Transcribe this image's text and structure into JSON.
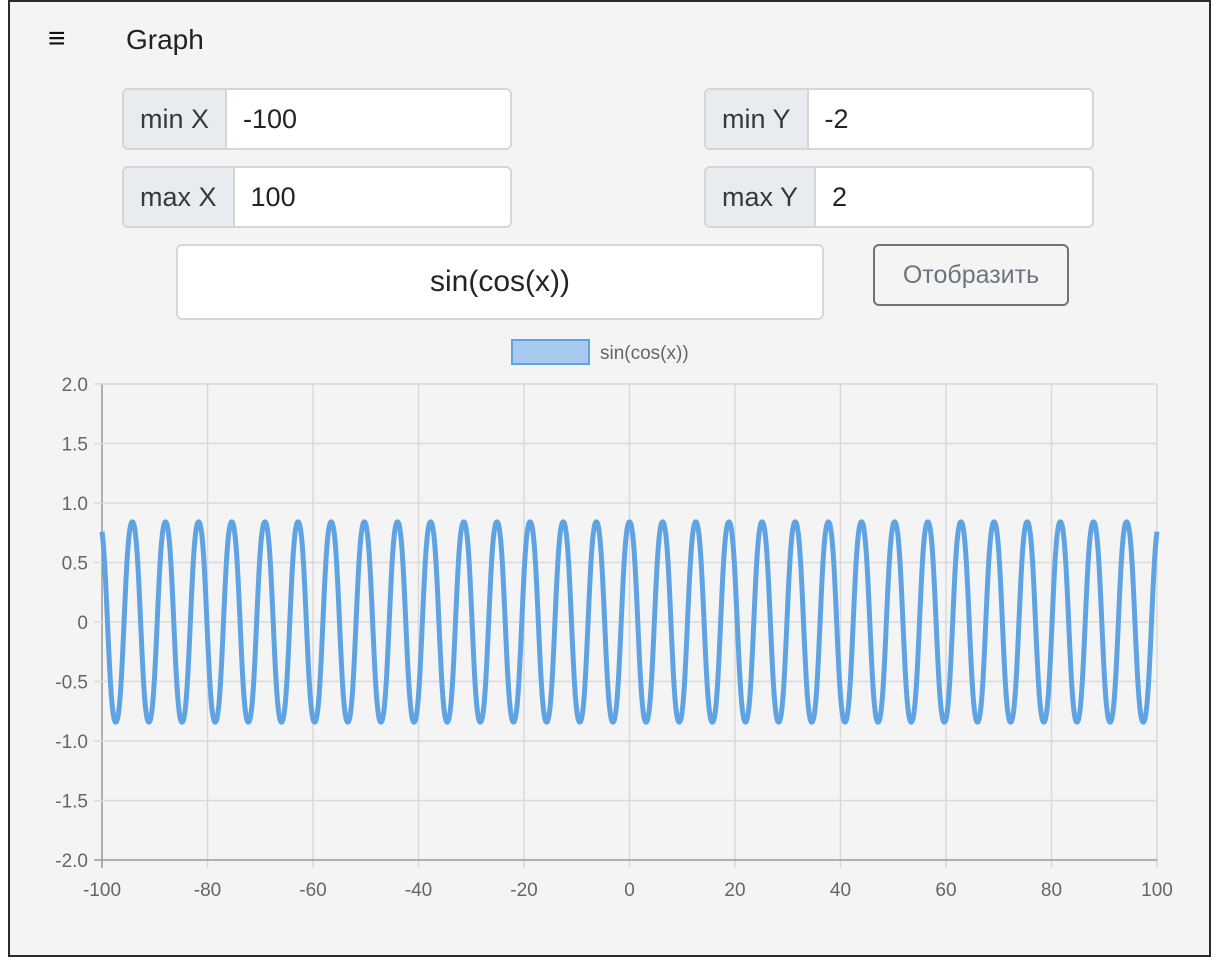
{
  "header": {
    "menu_icon": "hamburger-menu-icon",
    "menu_glyph": "≡",
    "title": "Graph"
  },
  "controls": {
    "min_x": {
      "label": "min X",
      "value": "-100"
    },
    "max_x": {
      "label": "max X",
      "value": "100"
    },
    "min_y": {
      "label": "min Y",
      "value": "-2"
    },
    "max_y": {
      "label": "max Y",
      "value": "2"
    },
    "formula": "sin(cos(x))",
    "render_button": "Отобразить"
  },
  "chart_data": {
    "type": "line",
    "series": [
      {
        "name": "sin(cos(x))",
        "function": "sin(cos(x))",
        "color": "#5fa3e3"
      }
    ],
    "legend_position": "top",
    "xlim": [
      -100,
      100
    ],
    "ylim": [
      -2,
      2
    ],
    "x_ticks": [
      "-100",
      "-80",
      "-60",
      "-40",
      "-20",
      "0",
      "20",
      "40",
      "60",
      "80",
      "100"
    ],
    "y_ticks": [
      "2.0",
      "1.5",
      "1.0",
      "0.5",
      "0",
      "-0.5",
      "-1.0",
      "-1.5",
      "-2.0"
    ],
    "grid": true,
    "legend_fill": "#a8caef",
    "line_color": "#5fa3e3"
  }
}
